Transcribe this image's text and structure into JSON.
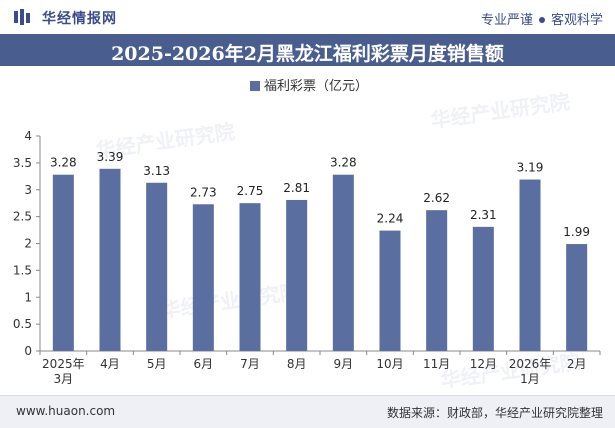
{
  "header": {
    "brand": "华经情报网",
    "tagline_left": "专业严谨",
    "tagline_right": "客观科学"
  },
  "watermark": "华经产业研究院",
  "footer": {
    "website": "www.huaon.com",
    "source": "数据来源：财政部，华经产业研究院整理"
  },
  "colors": {
    "bar": "#5a6e9f",
    "title_bg": "#4a5d8f"
  },
  "chart_data": {
    "type": "bar",
    "title": "2025-2026年2月黑龙江福利彩票月度销售额",
    "categories": [
      "2025年\n3月",
      "4月",
      "5月",
      "6月",
      "7月",
      "8月",
      "9月",
      "10月",
      "11月",
      "12月",
      "2026年\n1月",
      "2月"
    ],
    "series": [
      {
        "name": "福利彩票（亿元）",
        "values": [
          3.28,
          3.39,
          3.13,
          2.73,
          2.75,
          2.81,
          3.28,
          2.24,
          2.62,
          2.31,
          3.19,
          1.99
        ]
      }
    ],
    "value_labels": [
      "3.28",
      "3.39",
      "3.13",
      "2.73",
      "2.75",
      "2.81",
      "3.28",
      "2.24",
      "2.62",
      "2.31",
      "3.19",
      "1.99"
    ],
    "ylim": [
      0,
      4
    ],
    "yticks": [
      "0",
      "0.5",
      "1",
      "1.5",
      "2",
      "2.5",
      "3",
      "3.5",
      "4"
    ],
    "xlabel": "",
    "ylabel": "",
    "grid": false,
    "legend_position": "top-center"
  }
}
